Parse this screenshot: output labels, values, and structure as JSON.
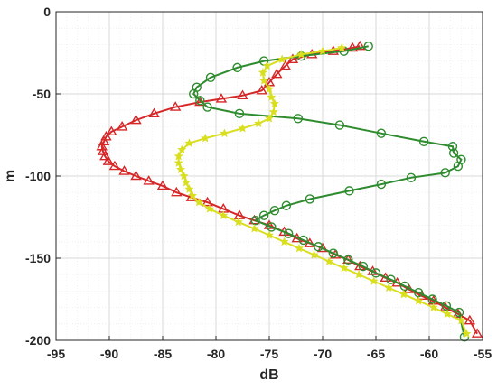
{
  "chart_data": {
    "type": "line",
    "xlabel": "dB",
    "ylabel": "m",
    "xlim": [
      -95,
      -55
    ],
    "ylim": [
      -200,
      0
    ],
    "xticks": [
      -95,
      -90,
      -85,
      -80,
      -75,
      -70,
      -65,
      -60,
      -55
    ],
    "yticks": [
      0,
      -50,
      -100,
      -150,
      -200
    ],
    "grid": true,
    "minor_grid": true,
    "series": [
      {
        "color": "#d62728",
        "marker": "triangle",
        "points": [
          [
            -66.5,
            -21
          ],
          [
            -67.2,
            -22
          ],
          [
            -69,
            -24
          ],
          [
            -71,
            -26
          ],
          [
            -72.8,
            -29
          ],
          [
            -73.5,
            -33
          ],
          [
            -74.3,
            -38
          ],
          [
            -75,
            -43
          ],
          [
            -75.7,
            -48
          ],
          [
            -77.5,
            -51
          ],
          [
            -79.5,
            -53
          ],
          [
            -81.5,
            -55
          ],
          [
            -83.8,
            -58
          ],
          [
            -85.8,
            -62
          ],
          [
            -87.5,
            -66
          ],
          [
            -88.8,
            -70
          ],
          [
            -89.8,
            -73
          ],
          [
            -90.3,
            -76
          ],
          [
            -90.5,
            -79
          ],
          [
            -90.7,
            -82
          ],
          [
            -90.6,
            -85
          ],
          [
            -90.4,
            -88
          ],
          [
            -90.1,
            -91
          ],
          [
            -89.5,
            -94
          ],
          [
            -88.6,
            -97
          ],
          [
            -87.5,
            -100
          ],
          [
            -86.3,
            -103
          ],
          [
            -85,
            -106
          ],
          [
            -83.7,
            -110
          ],
          [
            -82.3,
            -113
          ],
          [
            -80.8,
            -116
          ],
          [
            -79.3,
            -120
          ],
          [
            -77.8,
            -124
          ],
          [
            -76.4,
            -127
          ],
          [
            -75,
            -130
          ],
          [
            -73.6,
            -134
          ],
          [
            -72.4,
            -138
          ],
          [
            -71.2,
            -141
          ],
          [
            -70,
            -144
          ],
          [
            -68.8,
            -148
          ],
          [
            -67.6,
            -151
          ],
          [
            -66.5,
            -155
          ],
          [
            -65.3,
            -158
          ],
          [
            -64.1,
            -162
          ],
          [
            -63,
            -165
          ],
          [
            -61.9,
            -169
          ],
          [
            -60.7,
            -173
          ],
          [
            -59.6,
            -176
          ],
          [
            -58.5,
            -180
          ],
          [
            -57.3,
            -184
          ],
          [
            -56.2,
            -188
          ],
          [
            -55.5,
            -196
          ]
        ]
      },
      {
        "color": "#2e8b2e",
        "marker": "circle",
        "points": [
          [
            -65.7,
            -21
          ],
          [
            -68,
            -24
          ],
          [
            -72,
            -27
          ],
          [
            -75.5,
            -30
          ],
          [
            -78,
            -34
          ],
          [
            -80.5,
            -40
          ],
          [
            -81.8,
            -46
          ],
          [
            -82.1,
            -50
          ],
          [
            -81.5,
            -54
          ],
          [
            -80.8,
            -58
          ],
          [
            -77.8,
            -62
          ],
          [
            -72.3,
            -65
          ],
          [
            -68.4,
            -69
          ],
          [
            -64.5,
            -74
          ],
          [
            -60.5,
            -79
          ],
          [
            -57.8,
            -82
          ],
          [
            -57.7,
            -86
          ],
          [
            -57,
            -90
          ],
          [
            -57.3,
            -94
          ],
          [
            -58.5,
            -98
          ],
          [
            -61.7,
            -101
          ],
          [
            -64.5,
            -105
          ],
          [
            -67.5,
            -109
          ],
          [
            -71.2,
            -114
          ],
          [
            -73.4,
            -118
          ],
          [
            -74.5,
            -121
          ],
          [
            -75.5,
            -124
          ],
          [
            -76.3,
            -127
          ],
          [
            -74.8,
            -131
          ],
          [
            -73.2,
            -135
          ],
          [
            -71.8,
            -139
          ],
          [
            -70.4,
            -143
          ],
          [
            -69,
            -147
          ],
          [
            -67.6,
            -151
          ],
          [
            -66.2,
            -155
          ],
          [
            -65,
            -159
          ],
          [
            -63.6,
            -163
          ],
          [
            -62.3,
            -167
          ],
          [
            -61,
            -171
          ],
          [
            -59.7,
            -175
          ],
          [
            -58.4,
            -179
          ],
          [
            -57.2,
            -183
          ],
          [
            -56.7,
            -198
          ]
        ]
      },
      {
        "color": "#d9df1f",
        "marker": "star",
        "points": [
          [
            -68.2,
            -22
          ],
          [
            -70,
            -24
          ],
          [
            -72,
            -26
          ],
          [
            -73.8,
            -29
          ],
          [
            -75.2,
            -33
          ],
          [
            -75.6,
            -37
          ],
          [
            -75.5,
            -42
          ],
          [
            -75,
            -47
          ],
          [
            -74.8,
            -52
          ],
          [
            -74.5,
            -56
          ],
          [
            -74.6,
            -61
          ],
          [
            -75,
            -65
          ],
          [
            -76,
            -68
          ],
          [
            -77.5,
            -71
          ],
          [
            -79.2,
            -74
          ],
          [
            -81,
            -77
          ],
          [
            -82.5,
            -80
          ],
          [
            -83.2,
            -84
          ],
          [
            -83.5,
            -88
          ],
          [
            -83.5,
            -92
          ],
          [
            -83.3,
            -96
          ],
          [
            -83,
            -100
          ],
          [
            -82.8,
            -104
          ],
          [
            -82.5,
            -108
          ],
          [
            -82.2,
            -112
          ],
          [
            -81.6,
            -116
          ],
          [
            -80.6,
            -120
          ],
          [
            -79.3,
            -124
          ],
          [
            -77.9,
            -128
          ],
          [
            -76.4,
            -132
          ],
          [
            -75,
            -136
          ],
          [
            -73.6,
            -140
          ],
          [
            -72.2,
            -144
          ],
          [
            -70.8,
            -148
          ],
          [
            -69.4,
            -152
          ],
          [
            -68,
            -156
          ],
          [
            -66.6,
            -160
          ],
          [
            -65.2,
            -164
          ],
          [
            -63.8,
            -168
          ],
          [
            -62.4,
            -172
          ],
          [
            -61,
            -176
          ],
          [
            -59.6,
            -180
          ],
          [
            -58.3,
            -184
          ],
          [
            -57,
            -188
          ],
          [
            -56.5,
            -196
          ]
        ]
      }
    ]
  }
}
